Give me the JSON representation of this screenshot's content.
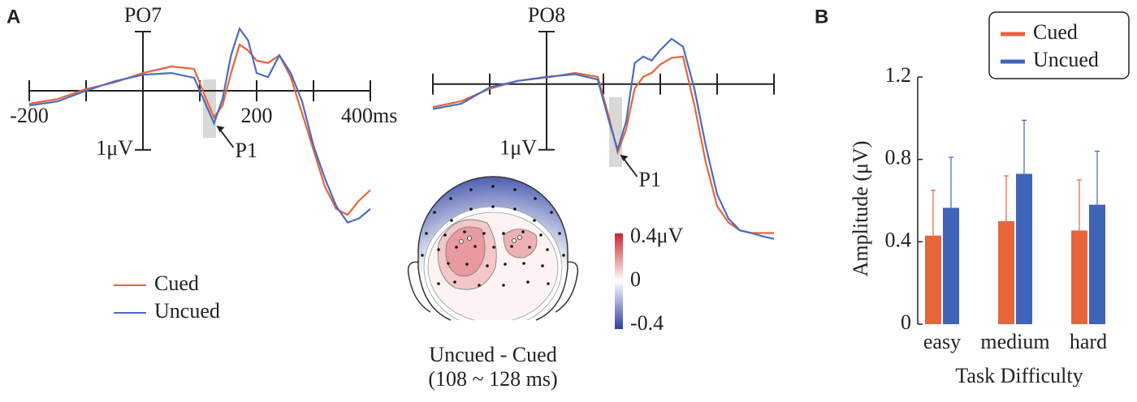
{
  "panel_labels": [
    "A",
    "B"
  ],
  "chart_data": [
    {
      "type": "line",
      "title": "PO7",
      "x": [
        -200,
        -150,
        -100,
        -50,
        0,
        50,
        90,
        110,
        125,
        140,
        155,
        170,
        185,
        200,
        220,
        240,
        260,
        280,
        300,
        320,
        340,
        360,
        380,
        400
      ],
      "xlim": [
        -200,
        400
      ],
      "xticks": [
        -200,
        {
          "value": -100,
          "label": null
        },
        {
          "value": 0,
          "label": null
        },
        {
          "value": 100,
          "label": null
        },
        200,
        {
          "value": 300,
          "label": null
        },
        {
          "value": 400,
          "label": "400ms"
        }
      ],
      "ylim": [
        -1.0,
        2.4
      ],
      "y_inverted": true,
      "yticks": [
        {
          "value": 1,
          "label": "1μV"
        }
      ],
      "series": [
        {
          "name": "Cued",
          "color": "#e8643a",
          "values": [
            0.22,
            0.14,
            -0.03,
            -0.14,
            -0.3,
            -0.41,
            -0.37,
            0.11,
            0.45,
            0.25,
            -0.3,
            -0.78,
            -0.68,
            -0.51,
            -0.47,
            -0.6,
            -0.23,
            0.38,
            1.0,
            1.62,
            2.0,
            2.1,
            1.86,
            1.68
          ]
        },
        {
          "name": "Uncued",
          "color": "#4a6cc0",
          "values": [
            0.25,
            0.18,
            0,
            -0.16,
            -0.27,
            -0.3,
            -0.22,
            0.22,
            0.55,
            0.14,
            -0.6,
            -1.05,
            -0.85,
            -0.3,
            -0.23,
            -0.6,
            -0.3,
            0.18,
            0.93,
            1.48,
            1.95,
            2.23,
            2.16,
            2.0
          ]
        }
      ],
      "annotations": [
        {
          "text": "P1",
          "x": 125,
          "y": 0.55
        }
      ]
    },
    {
      "type": "line",
      "title": "PO8",
      "x": [
        -200,
        -150,
        -100,
        -50,
        0,
        50,
        90,
        110,
        125,
        140,
        155,
        170,
        185,
        200,
        220,
        240,
        260,
        280,
        300,
        320,
        340,
        360,
        380,
        400
      ],
      "xlim": [
        -200,
        400
      ],
      "xticks": [
        {
          "value": -200,
          "label": null
        },
        {
          "value": -100,
          "label": null
        },
        {
          "value": 0,
          "label": null
        },
        {
          "value": 100,
          "label": null
        },
        {
          "value": 200,
          "label": null
        },
        {
          "value": 300,
          "label": null
        },
        {
          "value": 400,
          "label": null
        }
      ],
      "ylim": [
        -0.8,
        2.4
      ],
      "y_inverted": true,
      "yticks": [
        {
          "value": 1,
          "label": "1μV"
        }
      ],
      "series": [
        {
          "color": "#e8643a",
          "values": [
            0.35,
            0.26,
            0.07,
            -0.05,
            -0.1,
            -0.17,
            -0.11,
            0.51,
            1.04,
            0.69,
            0.07,
            -0.11,
            -0.17,
            -0.3,
            -0.4,
            -0.42,
            0.32,
            1.19,
            1.86,
            2.11,
            2.23,
            2.27,
            2.27,
            2.27
          ]
        },
        {
          "color": "#4a6cc0",
          "values": [
            0.38,
            0.3,
            0.05,
            -0.05,
            -0.11,
            -0.15,
            -0.07,
            0.57,
            1.0,
            0.57,
            -0.32,
            -0.42,
            -0.36,
            -0.52,
            -0.69,
            -0.57,
            0.07,
            0.94,
            1.68,
            2.05,
            2.23,
            2.27,
            2.32,
            2.36
          ]
        }
      ],
      "annotations": [
        {
          "text": "P1",
          "x": 125,
          "y": 1.04
        }
      ]
    },
    {
      "type": "topomap",
      "title": "Uncued - Cued",
      "subtitle": "(108 ~ 128 ms)",
      "clim": [
        -0.4,
        0.4
      ],
      "colorbar_ticks": [
        {
          "value": 0.4,
          "label": "0.4μV"
        },
        0,
        -0.4
      ]
    },
    {
      "type": "bar",
      "xlabel": "Task Difficulty",
      "ylabel": "Amplitude (μV)",
      "categories": [
        "easy",
        "medium",
        "hard"
      ],
      "ylim": [
        0,
        1.2
      ],
      "yticks": [
        0,
        0.4,
        0.8,
        1.2
      ],
      "legend": "top-right",
      "series": [
        {
          "name": "Cued",
          "color": "#e8643a",
          "values": [
            0.43,
            0.5,
            0.455
          ],
          "errors": [
            0.22,
            0.22,
            0.245
          ]
        },
        {
          "name": "Uncued",
          "color": "#3f63b8",
          "values": [
            0.565,
            0.73,
            0.58
          ],
          "errors": [
            0.245,
            0.26,
            0.26
          ]
        }
      ]
    }
  ]
}
